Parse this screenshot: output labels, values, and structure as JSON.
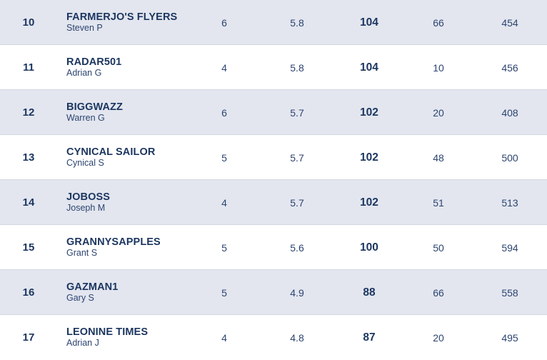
{
  "rows": [
    {
      "rank": "10",
      "team": "FARMERJO'S FLYERS",
      "manager": "Steven P",
      "col1": "6",
      "col2": "5.8",
      "col3": "104",
      "col4": "66",
      "col5": "454"
    },
    {
      "rank": "11",
      "team": "RADAR501",
      "manager": "Adrian G",
      "col1": "4",
      "col2": "5.8",
      "col3": "104",
      "col4": "10",
      "col5": "456"
    },
    {
      "rank": "12",
      "team": "BIGGWAZZ",
      "manager": "Warren G",
      "col1": "6",
      "col2": "5.7",
      "col3": "102",
      "col4": "20",
      "col5": "408"
    },
    {
      "rank": "13",
      "team": "CYNICAL SAILOR",
      "manager": "Cynical S",
      "col1": "5",
      "col2": "5.7",
      "col3": "102",
      "col4": "48",
      "col5": "500"
    },
    {
      "rank": "14",
      "team": "JOBOSS",
      "manager": "Joseph M",
      "col1": "4",
      "col2": "5.7",
      "col3": "102",
      "col4": "51",
      "col5": "513"
    },
    {
      "rank": "15",
      "team": "GRANNYSAPPLES",
      "manager": "Grant S",
      "col1": "5",
      "col2": "5.6",
      "col3": "100",
      "col4": "50",
      "col5": "594"
    },
    {
      "rank": "16",
      "team": "GAZMAN1",
      "manager": "Gary S",
      "col1": "5",
      "col2": "4.9",
      "col3": "88",
      "col4": "66",
      "col5": "558"
    },
    {
      "rank": "17",
      "team": "LEONINE TIMES",
      "manager": "Adrian J",
      "col1": "4",
      "col2": "4.8",
      "col3": "87",
      "col4": "20",
      "col5": "495"
    }
  ],
  "colors": {
    "shaded_row": "#e3e6ef",
    "plain_row": "#ffffff",
    "text_primary": "#1c3660"
  }
}
